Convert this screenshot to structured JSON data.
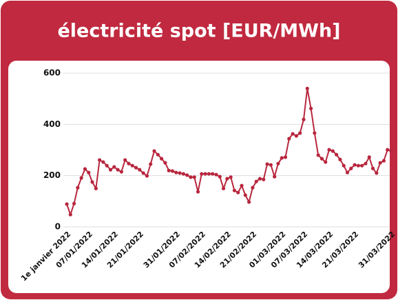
{
  "chart_data": {
    "type": "line",
    "title": "électricité spot [EUR/MWh]",
    "categories": [
      "1e janvier 2022",
      null,
      null,
      null,
      null,
      null,
      "07/01/2022",
      null,
      null,
      null,
      null,
      null,
      null,
      "14/01/2022",
      null,
      null,
      null,
      null,
      null,
      null,
      "21/01/2022",
      null,
      null,
      null,
      null,
      null,
      null,
      null,
      null,
      null,
      "31/01/2022",
      null,
      null,
      null,
      null,
      null,
      null,
      "07/02/2022",
      null,
      null,
      null,
      null,
      null,
      null,
      "14/02/2022",
      null,
      null,
      null,
      null,
      null,
      null,
      "21/02/2022",
      null,
      null,
      null,
      null,
      null,
      null,
      null,
      "01/03/2022",
      null,
      null,
      null,
      null,
      null,
      "07/03/2022",
      null,
      null,
      null,
      null,
      null,
      null,
      "14/03/2022",
      null,
      null,
      null,
      null,
      null,
      null,
      "21/03/2022",
      null,
      null,
      null,
      null,
      null,
      null,
      null,
      null,
      null,
      "31/03/2022"
    ],
    "values": [
      89,
      48,
      91,
      153,
      191,
      226,
      212,
      175,
      150,
      261,
      253,
      239,
      223,
      234,
      223,
      215,
      261,
      247,
      239,
      231,
      223,
      210,
      199,
      245,
      296,
      282,
      266,
      250,
      220,
      218,
      212,
      210,
      207,
      202,
      194,
      194,
      137,
      207,
      207,
      207,
      207,
      204,
      196,
      150,
      188,
      194,
      142,
      134,
      161,
      124,
      97,
      153,
      177,
      188,
      185,
      245,
      242,
      196,
      247,
      269,
      272,
      344,
      363,
      355,
      366,
      419,
      540,
      462,
      366,
      280,
      266,
      253,
      301,
      296,
      282,
      263,
      239,
      212,
      228,
      242,
      239,
      239,
      247,
      272,
      228,
      210,
      250,
      258,
      301,
      296
    ],
    "color": "#b8263d",
    "ylim": [
      0,
      600
    ],
    "yticks": [
      0,
      200,
      400,
      600
    ],
    "grid": true
  }
}
